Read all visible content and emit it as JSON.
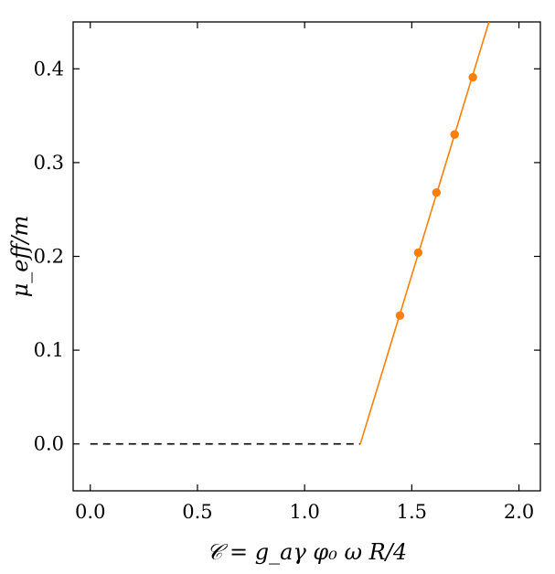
{
  "chart_data": {
    "type": "line",
    "title": "",
    "xlabel": "𝒞 = g_aγ φ₀ ω R/4",
    "ylabel": "μ_eff/m",
    "xlim": [
      -0.08,
      2.1
    ],
    "ylim": [
      -0.05,
      0.45
    ],
    "x_ticks": [
      0.0,
      0.5,
      1.0,
      1.5,
      2.0
    ],
    "x_tick_labels": [
      "0.0",
      "0.5",
      "1.0",
      "1.5",
      "2.0"
    ],
    "y_ticks": [
      0.0,
      0.1,
      0.2,
      0.3,
      0.4
    ],
    "y_tick_labels": [
      "0.0",
      "0.1",
      "0.2",
      "0.3",
      "0.4"
    ],
    "grid": false,
    "legend": "none",
    "series": [
      {
        "style": "dashed",
        "color": "#000000",
        "x": [
          0.0,
          1.26
        ],
        "y": [
          0.0,
          0.0
        ]
      },
      {
        "style": "solid",
        "color": "#ff8000",
        "x": [
          1.26,
          1.86
        ],
        "y": [
          0.0,
          0.45
        ]
      },
      {
        "style": "markers",
        "color": "#ff8000",
        "x": [
          1.445,
          1.53,
          1.615,
          1.7,
          1.785
        ],
        "y": [
          0.137,
          0.204,
          0.268,
          0.33,
          0.391
        ]
      }
    ]
  }
}
